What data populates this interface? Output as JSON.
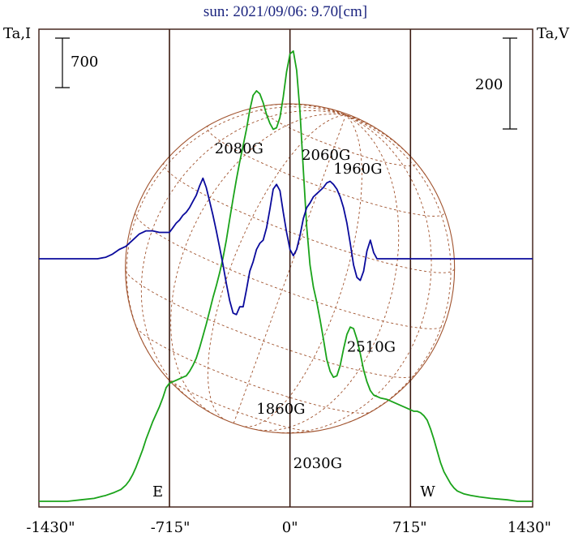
{
  "chart_data": {
    "type": "line",
    "title": "sun: 2021/09/06: 9.70[cm]",
    "left_axis_label": "Ta,I",
    "right_axis_label": "Ta,V",
    "x_unit": "arcsec",
    "xlim": [
      -1500,
      1450
    ],
    "x_ticks": [
      {
        "value": -1430,
        "label": "-1430\""
      },
      {
        "value": -715,
        "label": "-715\""
      },
      {
        "value": 0,
        "label": "0\""
      },
      {
        "value": 715,
        "label": "715\""
      },
      {
        "value": 1430,
        "label": "1430\""
      }
    ],
    "limb_lines": [
      {
        "x": -720,
        "label": "E"
      },
      {
        "x": 0,
        "label": ""
      },
      {
        "x": 720,
        "label": "W"
      }
    ],
    "scale_bars": [
      {
        "label": "700",
        "side": "left"
      },
      {
        "label": "200",
        "side": "right"
      }
    ],
    "grid": false,
    "colors": {
      "stokes_i": "#1aa31a",
      "stokes_v": "#0a0a9c",
      "solar_disk": "#a0522d",
      "frame": "#3a1a10"
    },
    "series": [
      {
        "key": "stokes_i",
        "x": [
          -1500,
          -1420,
          -1330,
          -1250,
          -1170,
          -1100,
          -1050,
          -1010,
          -980,
          -960,
          -940,
          -920,
          -900,
          -880,
          -860,
          -840,
          -820,
          -800,
          -780,
          -760,
          -740,
          -720,
          -700,
          -680,
          -660,
          -640,
          -620,
          -600,
          -580,
          -560,
          -540,
          -520,
          -500,
          -480,
          -460,
          -440,
          -420,
          -400,
          -380,
          -360,
          -340,
          -320,
          -300,
          -280,
          -260,
          -240,
          -220,
          -200,
          -180,
          -160,
          -140,
          -120,
          -100,
          -80,
          -60,
          -40,
          -20,
          0,
          20,
          40,
          60,
          80,
          100,
          120,
          140,
          160,
          180,
          200,
          220,
          240,
          260,
          280,
          300,
          320,
          340,
          360,
          380,
          400,
          420,
          440,
          460,
          480,
          500,
          540,
          580,
          620,
          660,
          700,
          720,
          740,
          760,
          780,
          800,
          820,
          840,
          860,
          880,
          900,
          920,
          940,
          960,
          980,
          1000,
          1040,
          1080,
          1130,
          1200,
          1300,
          1360,
          1420,
          1450
        ],
        "y": [
          0.0,
          0.0,
          0.0,
          0.01,
          0.02,
          0.04,
          0.06,
          0.08,
          0.11,
          0.14,
          0.18,
          0.23,
          0.29,
          0.35,
          0.42,
          0.48,
          0.54,
          0.59,
          0.64,
          0.7,
          0.77,
          0.8,
          0.81,
          0.82,
          0.83,
          0.84,
          0.85,
          0.88,
          0.92,
          0.97,
          1.04,
          1.12,
          1.2,
          1.29,
          1.38,
          1.46,
          1.55,
          1.65,
          1.77,
          1.91,
          2.05,
          2.18,
          2.3,
          2.41,
          2.52,
          2.65,
          2.75,
          2.78,
          2.76,
          2.7,
          2.62,
          2.56,
          2.52,
          2.53,
          2.6,
          2.74,
          2.91,
          3.03,
          3.05,
          2.92,
          2.64,
          2.24,
          1.86,
          1.6,
          1.45,
          1.35,
          1.23,
          1.1,
          0.96,
          0.88,
          0.84,
          0.85,
          0.92,
          1.03,
          1.13,
          1.18,
          1.17,
          1.1,
          1.0,
          0.89,
          0.81,
          0.75,
          0.72,
          0.7,
          0.69,
          0.67,
          0.65,
          0.63,
          0.62,
          0.61,
          0.61,
          0.6,
          0.58,
          0.55,
          0.49,
          0.42,
          0.34,
          0.26,
          0.2,
          0.16,
          0.12,
          0.09,
          0.07,
          0.05,
          0.04,
          0.03,
          0.02,
          0.01,
          0.0,
          0.0,
          0.0
        ]
      },
      {
        "key": "stokes_v",
        "x": [
          -1500,
          -1450,
          -1400,
          -1350,
          -1300,
          -1250,
          -1200,
          -1150,
          -1100,
          -1060,
          -1020,
          -980,
          -940,
          -900,
          -860,
          -820,
          -780,
          -750,
          -720,
          -700,
          -680,
          -660,
          -640,
          -620,
          -600,
          -580,
          -560,
          -540,
          -520,
          -500,
          -480,
          -460,
          -440,
          -420,
          -400,
          -380,
          -360,
          -340,
          -320,
          -300,
          -280,
          -260,
          -240,
          -220,
          -200,
          -180,
          -160,
          -140,
          -120,
          -100,
          -80,
          -60,
          -40,
          -20,
          0,
          20,
          40,
          60,
          80,
          100,
          120,
          140,
          160,
          180,
          200,
          220,
          240,
          260,
          280,
          300,
          320,
          340,
          360,
          380,
          400,
          420,
          440,
          460,
          480,
          500,
          520,
          540,
          560,
          600,
          640,
          680,
          720,
          760,
          800,
          850,
          900,
          950,
          1000,
          1050,
          1100,
          1150,
          1200,
          1250,
          1300,
          1350,
          1400,
          1450
        ],
        "y": [
          0.0,
          0.0,
          0.0,
          0.0,
          0.0,
          0.0,
          0.0,
          0.0,
          0.01,
          0.03,
          0.06,
          0.08,
          0.12,
          0.16,
          0.18,
          0.18,
          0.17,
          0.17,
          0.17,
          0.2,
          0.23,
          0.25,
          0.28,
          0.3,
          0.33,
          0.37,
          0.41,
          0.47,
          0.52,
          0.46,
          0.37,
          0.28,
          0.18,
          0.07,
          -0.04,
          -0.16,
          -0.27,
          -0.35,
          -0.36,
          -0.31,
          -0.31,
          -0.2,
          -0.08,
          -0.02,
          0.06,
          0.1,
          0.12,
          0.2,
          0.32,
          0.45,
          0.48,
          0.44,
          0.3,
          0.17,
          0.06,
          0.02,
          0.06,
          0.15,
          0.26,
          0.33,
          0.36,
          0.4,
          0.42,
          0.44,
          0.46,
          0.49,
          0.5,
          0.48,
          0.45,
          0.4,
          0.33,
          0.23,
          0.1,
          -0.04,
          -0.12,
          -0.14,
          -0.08,
          0.05,
          0.12,
          0.04,
          0.0,
          0.0,
          0.0,
          0.0,
          0.0,
          0.0,
          0.0,
          0.0,
          0.0,
          0.0,
          0.0,
          0.0,
          0.0,
          0.0,
          0.0,
          0.0,
          0.0,
          0.0,
          0.0,
          0.0,
          0.0,
          0.0
        ]
      }
    ],
    "annotations": [
      {
        "text": "2080G",
        "x": -450,
        "y": 0.68
      },
      {
        "text": "2060G",
        "x": 70,
        "y": 0.64
      },
      {
        "text": "1960G",
        "x": 260,
        "y": 0.55
      },
      {
        "text": "2510G",
        "x": 340,
        "y": -0.6
      },
      {
        "text": "1860G",
        "x": -200,
        "y": -1.0
      },
      {
        "text": "2030G",
        "x": 20,
        "y": -1.35
      }
    ]
  }
}
